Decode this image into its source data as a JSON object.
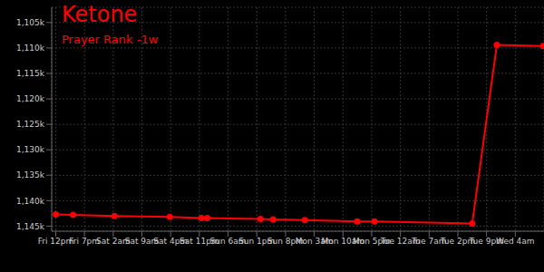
{
  "chart_data": {
    "type": "line",
    "title": "Ketone",
    "subtitle": "Prayer Rank -1w",
    "x": [
      0,
      4.2,
      14.3,
      27.8,
      35.5,
      36.9,
      49.9,
      53,
      60.7,
      73.5,
      77.7,
      101.5,
      107.5,
      118.8
    ],
    "values": [
      1142700,
      1142800,
      1143000,
      1143200,
      1143400,
      1143400,
      1143600,
      1143700,
      1143800,
      1144100,
      1144100,
      1144500,
      1109400,
      1109600
    ],
    "color": "#ff0000",
    "marker": "circle",
    "grid": true,
    "xlim": [
      -1,
      119
    ],
    "xticks": [
      {
        "value": 0,
        "label": "Fri 12pm"
      },
      {
        "value": 7,
        "label": "Fri 7pm"
      },
      {
        "value": 14,
        "label": "Sat 2am"
      },
      {
        "value": 21,
        "label": "Sat 9am"
      },
      {
        "value": 28,
        "label": "Sat 4pm"
      },
      {
        "value": 35,
        "label": "Sat 11pm"
      },
      {
        "value": 42,
        "label": "Sun 6am"
      },
      {
        "value": 49,
        "label": "Sun 1pm"
      },
      {
        "value": 56,
        "label": "Sun 8pm"
      },
      {
        "value": 63,
        "label": "Mon 3am"
      },
      {
        "value": 70,
        "label": "Mon 10am"
      },
      {
        "value": 77,
        "label": "Mon 5pm"
      },
      {
        "value": 84,
        "label": "Tue 12am"
      },
      {
        "value": 91,
        "label": "Tue 7am"
      },
      {
        "value": 98,
        "label": "Tue 2pm"
      },
      {
        "value": 105,
        "label": "Tue 9pm"
      },
      {
        "value": 112,
        "label": "Wed 4am"
      }
    ],
    "ylim": [
      1102000,
      1146000
    ],
    "yticks": [
      {
        "value": 1105000,
        "label": "1,105k"
      },
      {
        "value": 1110000,
        "label": "1,110k"
      },
      {
        "value": 1115000,
        "label": "1,115k"
      },
      {
        "value": 1120000,
        "label": "1,120k"
      },
      {
        "value": 1125000,
        "label": "1,125k"
      },
      {
        "value": 1130000,
        "label": "1,130k"
      },
      {
        "value": 1135000,
        "label": "1,135k"
      },
      {
        "value": 1140000,
        "label": "1,140k"
      },
      {
        "value": 1145000,
        "label": "1,145k"
      }
    ]
  }
}
